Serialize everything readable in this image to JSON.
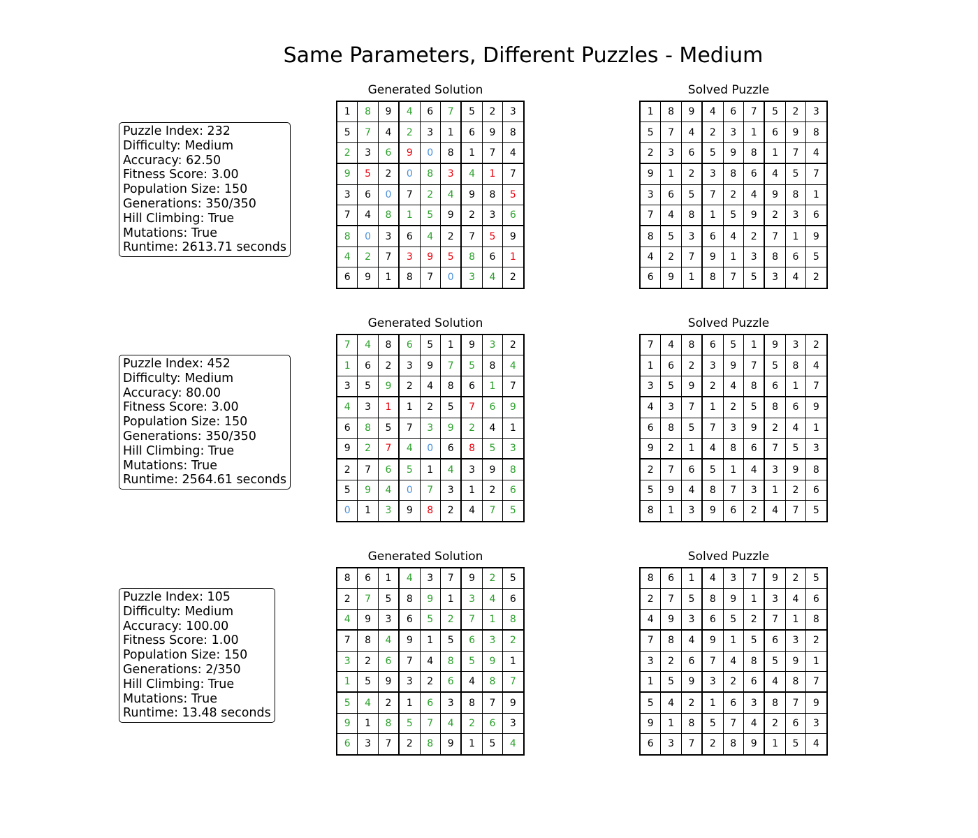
{
  "title": "Same Parameters, Different Puzzles - Medium",
  "colors": {
    "correct": "#2ca02c",
    "wrong": "#e8000b",
    "empty": "#4a90d9",
    "given": "#000000"
  },
  "generated_title": "Generated Solution",
  "solved_title": "Solved Puzzle",
  "puzzles": [
    {
      "info": [
        "Puzzle Index: 232",
        "Difficulty: Medium",
        "Accuracy: 62.50",
        "Fitness Score: 3.00",
        "Population Size: 150",
        "Generations: 350/350",
        "Hill Climbing: True",
        "Mutations: True",
        "Runtime: 2613.71 seconds"
      ],
      "generated": [
        [
          1,
          8,
          9,
          4,
          6,
          7,
          5,
          2,
          3
        ],
        [
          5,
          7,
          4,
          2,
          3,
          1,
          6,
          9,
          8
        ],
        [
          2,
          3,
          6,
          9,
          0,
          8,
          1,
          7,
          4
        ],
        [
          9,
          5,
          2,
          0,
          8,
          3,
          4,
          1,
          7
        ],
        [
          3,
          6,
          0,
          7,
          2,
          4,
          9,
          8,
          5
        ],
        [
          7,
          4,
          8,
          1,
          5,
          9,
          2,
          3,
          6
        ],
        [
          8,
          0,
          3,
          6,
          4,
          2,
          7,
          5,
          9
        ],
        [
          4,
          2,
          7,
          3,
          9,
          5,
          8,
          6,
          1
        ],
        [
          6,
          9,
          1,
          8,
          7,
          0,
          3,
          4,
          2
        ]
      ],
      "status": [
        "kgkgkgkkk",
        "kgkgkkkkk",
        "gkgrbkkkk",
        "grkbgrgrk",
        "kkbkggkkr",
        "kkgggkkkg",
        "gbkkgkkrk",
        "ggkrrrgkr",
        "kkkkkbggk"
      ],
      "solved": [
        [
          1,
          8,
          9,
          4,
          6,
          7,
          5,
          2,
          3
        ],
        [
          5,
          7,
          4,
          2,
          3,
          1,
          6,
          9,
          8
        ],
        [
          2,
          3,
          6,
          5,
          9,
          8,
          1,
          7,
          4
        ],
        [
          9,
          1,
          2,
          3,
          8,
          6,
          4,
          5,
          7
        ],
        [
          3,
          6,
          5,
          7,
          2,
          4,
          9,
          8,
          1
        ],
        [
          7,
          4,
          8,
          1,
          5,
          9,
          2,
          3,
          6
        ],
        [
          8,
          5,
          3,
          6,
          4,
          2,
          7,
          1,
          9
        ],
        [
          4,
          2,
          7,
          9,
          1,
          3,
          8,
          6,
          5
        ],
        [
          6,
          9,
          1,
          8,
          7,
          5,
          3,
          4,
          2
        ]
      ]
    },
    {
      "info": [
        "Puzzle Index: 452",
        "Difficulty: Medium",
        "Accuracy: 80.00",
        "Fitness Score: 3.00",
        "Population Size: 150",
        "Generations: 350/350",
        "Hill Climbing: True",
        "Mutations: True",
        "Runtime: 2564.61 seconds"
      ],
      "generated": [
        [
          7,
          4,
          8,
          6,
          5,
          1,
          9,
          3,
          2
        ],
        [
          1,
          6,
          2,
          3,
          9,
          7,
          5,
          8,
          4
        ],
        [
          3,
          5,
          9,
          2,
          4,
          8,
          6,
          1,
          7
        ],
        [
          4,
          3,
          1,
          1,
          2,
          5,
          7,
          6,
          9
        ],
        [
          6,
          8,
          5,
          7,
          3,
          9,
          2,
          4,
          1
        ],
        [
          9,
          2,
          7,
          4,
          0,
          6,
          8,
          5,
          3
        ],
        [
          2,
          7,
          6,
          5,
          1,
          4,
          3,
          9,
          8
        ],
        [
          5,
          9,
          4,
          0,
          7,
          3,
          1,
          2,
          6
        ],
        [
          0,
          1,
          3,
          9,
          8,
          2,
          4,
          7,
          5
        ]
      ],
      "status": [
        "ggkgkkkgk",
        "gkkkkggkg",
        "kkgkkkkgk",
        "gkrkkkrgg",
        "kgkkgggkk",
        "kgrgbkrgg",
        "kkggkgkkg",
        "kggbgkkkg",
        "bkgkrkkgg"
      ],
      "solved": [
        [
          7,
          4,
          8,
          6,
          5,
          1,
          9,
          3,
          2
        ],
        [
          1,
          6,
          2,
          3,
          9,
          7,
          5,
          8,
          4
        ],
        [
          3,
          5,
          9,
          2,
          4,
          8,
          6,
          1,
          7
        ],
        [
          4,
          3,
          7,
          1,
          2,
          5,
          8,
          6,
          9
        ],
        [
          6,
          8,
          5,
          7,
          3,
          9,
          2,
          4,
          1
        ],
        [
          9,
          2,
          1,
          4,
          8,
          6,
          7,
          5,
          3
        ],
        [
          2,
          7,
          6,
          5,
          1,
          4,
          3,
          9,
          8
        ],
        [
          5,
          9,
          4,
          8,
          7,
          3,
          1,
          2,
          6
        ],
        [
          8,
          1,
          3,
          9,
          6,
          2,
          4,
          7,
          5
        ]
      ]
    },
    {
      "info": [
        "Puzzle Index: 105",
        "Difficulty: Medium",
        "Accuracy: 100.00",
        "Fitness Score: 1.00",
        "Population Size: 150",
        "Generations: 2/350",
        "Hill Climbing: True",
        "Mutations: True",
        "Runtime: 13.48 seconds"
      ],
      "generated": [
        [
          8,
          6,
          1,
          4,
          3,
          7,
          9,
          2,
          5
        ],
        [
          2,
          7,
          5,
          8,
          9,
          1,
          3,
          4,
          6
        ],
        [
          4,
          9,
          3,
          6,
          5,
          2,
          7,
          1,
          8
        ],
        [
          7,
          8,
          4,
          9,
          1,
          5,
          6,
          3,
          2
        ],
        [
          3,
          2,
          6,
          7,
          4,
          8,
          5,
          9,
          1
        ],
        [
          1,
          5,
          9,
          3,
          2,
          6,
          4,
          8,
          7
        ],
        [
          5,
          4,
          2,
          1,
          6,
          3,
          8,
          7,
          9
        ],
        [
          9,
          1,
          8,
          5,
          7,
          4,
          2,
          6,
          3
        ],
        [
          6,
          3,
          7,
          2,
          8,
          9,
          1,
          5,
          4
        ]
      ],
      "status": [
        "kkkgkkkgk",
        "kgkkgkggk",
        "gkkkggggg",
        "kkgkkkggg",
        "gkgkkgggk",
        "gkkkkgkgg",
        "ggkkgkkkk",
        "gkggggggk",
        "gkkkgkkkg"
      ],
      "solved": [
        [
          8,
          6,
          1,
          4,
          3,
          7,
          9,
          2,
          5
        ],
        [
          2,
          7,
          5,
          8,
          9,
          1,
          3,
          4,
          6
        ],
        [
          4,
          9,
          3,
          6,
          5,
          2,
          7,
          1,
          8
        ],
        [
          7,
          8,
          4,
          9,
          1,
          5,
          6,
          3,
          2
        ],
        [
          3,
          2,
          6,
          7,
          4,
          8,
          5,
          9,
          1
        ],
        [
          1,
          5,
          9,
          3,
          2,
          6,
          4,
          8,
          7
        ],
        [
          5,
          4,
          2,
          1,
          6,
          3,
          8,
          7,
          9
        ],
        [
          9,
          1,
          8,
          5,
          7,
          4,
          2,
          6,
          3
        ],
        [
          6,
          3,
          7,
          2,
          8,
          9,
          1,
          5,
          4
        ]
      ]
    }
  ]
}
